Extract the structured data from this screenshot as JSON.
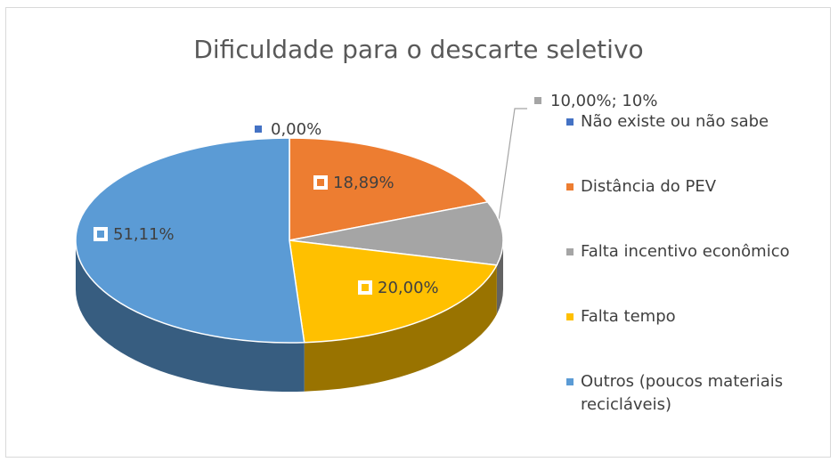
{
  "chart_data": {
    "type": "pie3d",
    "title": "Dificuldade para o descarte seletivo",
    "categories": [
      "Não existe ou não sabe",
      "Distância do PEV",
      "Falta incentivo econômico",
      "Falta tempo",
      "Outros (poucos materiais recicláveis)"
    ],
    "values": [
      0,
      18.89,
      10,
      20,
      51.11
    ],
    "value_labels": [
      "0,00%",
      "18,89%",
      "10,00%; 10%",
      "20,00%",
      "51,11%"
    ],
    "colors": [
      "#4472c4",
      "#ed7d31",
      "#a5a5a5",
      "#ffc000",
      "#5b9bd5"
    ],
    "legend": "right"
  }
}
